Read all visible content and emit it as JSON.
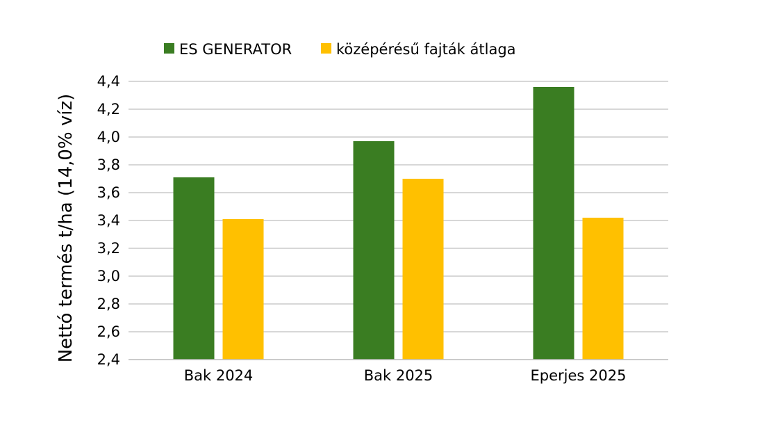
{
  "chart_data": {
    "type": "bar",
    "categories": [
      "Bak 2024",
      "Bak 2025",
      "Eperjes 2025"
    ],
    "series": [
      {
        "name": "ES GENERATOR",
        "values": [
          3.71,
          3.97,
          4.36
        ],
        "color": "#3A7D22"
      },
      {
        "name": "középérésű fajták átlaga",
        "values": [
          3.41,
          3.7,
          3.42
        ],
        "color": "#FFC000"
      }
    ],
    "ylabel": "Nettó termés t/ha (14,0% víz)",
    "ylim": [
      2.4,
      4.4
    ],
    "yticks": [
      "2,4",
      "2,6",
      "2,8",
      "3,0",
      "3,2",
      "3,4",
      "3,6",
      "3,8",
      "4,0",
      "4,2",
      "4,4"
    ],
    "grid": true,
    "gridColor": "#BFBFBF",
    "legend": "top"
  }
}
